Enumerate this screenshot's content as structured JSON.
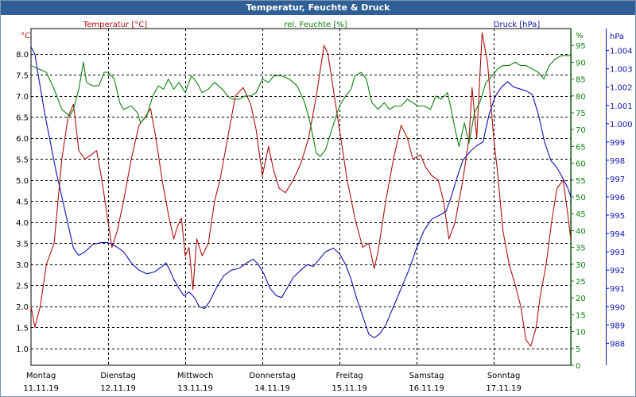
{
  "window": {
    "title": "Temperatur, Feuchte & Druck"
  },
  "colors": {
    "temperature": "#b01010",
    "humidity": "#108010",
    "pressure": "#1010b0",
    "grid": "#000000"
  },
  "chart_data": {
    "type": "line",
    "title": "Temperatur, Feuchte & Druck",
    "grid": true,
    "x_ticks": [
      {
        "day": "Montag",
        "date": "11.11.19"
      },
      {
        "day": "Dienstag",
        "date": "12.11.19"
      },
      {
        "day": "Mittwoch",
        "date": "13.11.19"
      },
      {
        "day": "Donnerstag",
        "date": "14.11.19"
      },
      {
        "day": "Freitag",
        "date": "15.11.19"
      },
      {
        "day": "Samstag",
        "date": "16.11.19"
      },
      {
        "day": "Sonntag",
        "date": "17.11.19"
      }
    ],
    "x_range_days": [
      0,
      7
    ],
    "axes": {
      "temperature": {
        "label": "Temperatur [°C]",
        "unit": "°C",
        "range": [
          0.6,
          8.6
        ],
        "ticks": [
          "1.0",
          "1.5",
          "2.0",
          "2.5",
          "3.0",
          "3.5",
          "4.0",
          "4.5",
          "5.0",
          "5.5",
          "6.0",
          "6.5",
          "7.0",
          "7.5",
          "8.0"
        ]
      },
      "humidity": {
        "label": "rel. Feuchte [%]",
        "unit": "%",
        "range": [
          0,
          100
        ],
        "ticks": [
          "0",
          "5",
          "10",
          "15",
          "20",
          "25",
          "30",
          "35",
          "40",
          "45",
          "50",
          "55",
          "60",
          "65",
          "70",
          "75",
          "80",
          "85",
          "90",
          "95"
        ]
      },
      "pressure": {
        "label": "Druck [hPa]",
        "unit": "hPa",
        "range": [
          986.8,
          1005.2
        ],
        "ticks": [
          "988",
          "989",
          "990",
          "991",
          "992",
          "993",
          "994",
          "995",
          "996",
          "997",
          "998",
          "999",
          "1.000",
          "1.001",
          "1.002",
          "1.003",
          "1.004"
        ]
      }
    },
    "series": [
      {
        "name": "Temperatur [°C]",
        "axis": "temperature",
        "points": [
          [
            0.0,
            2.0
          ],
          [
            0.05,
            1.5
          ],
          [
            0.12,
            2.0
          ],
          [
            0.2,
            3.0
          ],
          [
            0.3,
            3.5
          ],
          [
            0.4,
            5.5
          ],
          [
            0.48,
            6.5
          ],
          [
            0.55,
            6.8
          ],
          [
            0.62,
            5.7
          ],
          [
            0.7,
            5.5
          ],
          [
            0.78,
            5.6
          ],
          [
            0.85,
            5.7
          ],
          [
            0.92,
            5.0
          ],
          [
            1.0,
            4.0
          ],
          [
            1.05,
            3.4
          ],
          [
            1.12,
            3.8
          ],
          [
            1.2,
            4.5
          ],
          [
            1.3,
            5.5
          ],
          [
            1.4,
            6.3
          ],
          [
            1.48,
            6.5
          ],
          [
            1.55,
            6.7
          ],
          [
            1.62,
            6.0
          ],
          [
            1.7,
            5.0
          ],
          [
            1.78,
            4.2
          ],
          [
            1.85,
            3.6
          ],
          [
            1.9,
            3.9
          ],
          [
            1.95,
            4.1
          ],
          [
            2.0,
            3.2
          ],
          [
            2.05,
            3.4
          ],
          [
            2.1,
            2.4
          ],
          [
            2.15,
            3.6
          ],
          [
            2.22,
            3.2
          ],
          [
            2.3,
            3.5
          ],
          [
            2.38,
            4.5
          ],
          [
            2.45,
            5.0
          ],
          [
            2.55,
            6.0
          ],
          [
            2.65,
            7.0
          ],
          [
            2.75,
            7.2
          ],
          [
            2.85,
            6.8
          ],
          [
            2.92,
            6.2
          ],
          [
            3.0,
            5.1
          ],
          [
            3.08,
            5.8
          ],
          [
            3.15,
            5.2
          ],
          [
            3.22,
            4.8
          ],
          [
            3.3,
            4.7
          ],
          [
            3.4,
            5.0
          ],
          [
            3.5,
            5.4
          ],
          [
            3.6,
            6.0
          ],
          [
            3.7,
            7.0
          ],
          [
            3.8,
            8.2
          ],
          [
            3.85,
            8.0
          ],
          [
            3.9,
            7.4
          ],
          [
            4.0,
            6.2
          ],
          [
            4.1,
            5.0
          ],
          [
            4.2,
            4.1
          ],
          [
            4.3,
            3.4
          ],
          [
            4.38,
            3.5
          ],
          [
            4.45,
            2.9
          ],
          [
            4.5,
            3.3
          ],
          [
            4.6,
            4.5
          ],
          [
            4.7,
            5.5
          ],
          [
            4.8,
            6.3
          ],
          [
            4.88,
            6.0
          ],
          [
            4.95,
            5.5
          ],
          [
            5.05,
            5.6
          ],
          [
            5.12,
            5.3
          ],
          [
            5.2,
            5.1
          ],
          [
            5.28,
            5.0
          ],
          [
            5.35,
            4.5
          ],
          [
            5.42,
            3.6
          ],
          [
            5.5,
            4.0
          ],
          [
            5.6,
            5.0
          ],
          [
            5.68,
            6.0
          ],
          [
            5.72,
            7.2
          ],
          [
            5.78,
            6.0
          ],
          [
            5.85,
            8.5
          ],
          [
            5.92,
            7.8
          ],
          [
            6.0,
            6.0
          ],
          [
            6.05,
            5.2
          ],
          [
            6.12,
            3.8
          ],
          [
            6.2,
            3.0
          ],
          [
            6.28,
            2.5
          ],
          [
            6.35,
            2.0
          ],
          [
            6.42,
            1.2
          ],
          [
            6.48,
            1.05
          ],
          [
            6.55,
            1.5
          ],
          [
            6.6,
            2.2
          ],
          [
            6.68,
            3.0
          ],
          [
            6.75,
            4.0
          ],
          [
            6.82,
            4.8
          ],
          [
            6.9,
            5.0
          ],
          [
            6.96,
            4.2
          ],
          [
            7.0,
            3.6
          ]
        ]
      },
      {
        "name": "rel. Feuchte [%]",
        "axis": "humidity",
        "points": [
          [
            0.0,
            89
          ],
          [
            0.1,
            88
          ],
          [
            0.2,
            87
          ],
          [
            0.3,
            82
          ],
          [
            0.4,
            76
          ],
          [
            0.5,
            74
          ],
          [
            0.55,
            76
          ],
          [
            0.62,
            82
          ],
          [
            0.68,
            90
          ],
          [
            0.72,
            84
          ],
          [
            0.8,
            83
          ],
          [
            0.88,
            83
          ],
          [
            0.95,
            87
          ],
          [
            1.0,
            87
          ],
          [
            1.08,
            85
          ],
          [
            1.15,
            78
          ],
          [
            1.2,
            76
          ],
          [
            1.3,
            77
          ],
          [
            1.38,
            75
          ],
          [
            1.42,
            72
          ],
          [
            1.5,
            74
          ],
          [
            1.58,
            80
          ],
          [
            1.65,
            83
          ],
          [
            1.72,
            82
          ],
          [
            1.78,
            85
          ],
          [
            1.85,
            82
          ],
          [
            1.92,
            84
          ],
          [
            2.0,
            81
          ],
          [
            2.08,
            86
          ],
          [
            2.15,
            84
          ],
          [
            2.22,
            81
          ],
          [
            2.3,
            82
          ],
          [
            2.38,
            84
          ],
          [
            2.48,
            82
          ],
          [
            2.55,
            80
          ],
          [
            2.62,
            79
          ],
          [
            2.7,
            79
          ],
          [
            2.78,
            80
          ],
          [
            2.85,
            80
          ],
          [
            2.92,
            81
          ],
          [
            3.0,
            85
          ],
          [
            3.08,
            84
          ],
          [
            3.15,
            86
          ],
          [
            3.25,
            86
          ],
          [
            3.35,
            85
          ],
          [
            3.45,
            83
          ],
          [
            3.55,
            78
          ],
          [
            3.62,
            72
          ],
          [
            3.7,
            63
          ],
          [
            3.75,
            62
          ],
          [
            3.82,
            64
          ],
          [
            3.9,
            70
          ],
          [
            4.0,
            77
          ],
          [
            4.08,
            80
          ],
          [
            4.15,
            82
          ],
          [
            4.2,
            86
          ],
          [
            4.28,
            87
          ],
          [
            4.35,
            85
          ],
          [
            4.42,
            78
          ],
          [
            4.5,
            76
          ],
          [
            4.58,
            78
          ],
          [
            4.65,
            76
          ],
          [
            4.72,
            77
          ],
          [
            4.8,
            77
          ],
          [
            4.88,
            79
          ],
          [
            4.95,
            78
          ],
          [
            5.02,
            77
          ],
          [
            5.1,
            77
          ],
          [
            5.18,
            76
          ],
          [
            5.25,
            80
          ],
          [
            5.32,
            79
          ],
          [
            5.4,
            81
          ],
          [
            5.45,
            76
          ],
          [
            5.5,
            70
          ],
          [
            5.55,
            65
          ],
          [
            5.62,
            72
          ],
          [
            5.68,
            66
          ],
          [
            5.75,
            75
          ],
          [
            5.82,
            78
          ],
          [
            5.9,
            84
          ],
          [
            5.98,
            86
          ],
          [
            6.05,
            88
          ],
          [
            6.12,
            89
          ],
          [
            6.2,
            89
          ],
          [
            6.28,
            90
          ],
          [
            6.35,
            89
          ],
          [
            6.42,
            89
          ],
          [
            6.5,
            88
          ],
          [
            6.58,
            87
          ],
          [
            6.65,
            85
          ],
          [
            6.72,
            89
          ],
          [
            6.8,
            91
          ],
          [
            6.88,
            92
          ],
          [
            6.95,
            92
          ],
          [
            7.0,
            92
          ]
        ]
      },
      {
        "name": "Druck [hPa]",
        "axis": "pressure",
        "points": [
          [
            0.0,
            1004.2
          ],
          [
            0.05,
            1003.8
          ],
          [
            0.1,
            1002.5
          ],
          [
            0.18,
            1000.5
          ],
          [
            0.25,
            999.0
          ],
          [
            0.32,
            997.5
          ],
          [
            0.4,
            996.0
          ],
          [
            0.48,
            994.5
          ],
          [
            0.55,
            993.2
          ],
          [
            0.62,
            992.8
          ],
          [
            0.7,
            993.0
          ],
          [
            0.8,
            993.4
          ],
          [
            0.9,
            993.5
          ],
          [
            1.0,
            993.5
          ],
          [
            1.1,
            993.3
          ],
          [
            1.2,
            993.0
          ],
          [
            1.3,
            992.4
          ],
          [
            1.4,
            992.0
          ],
          [
            1.5,
            991.8
          ],
          [
            1.6,
            991.9
          ],
          [
            1.7,
            992.2
          ],
          [
            1.75,
            992.4
          ],
          [
            1.8,
            992.0
          ],
          [
            1.85,
            991.5
          ],
          [
            1.92,
            991.0
          ],
          [
            1.98,
            990.6
          ],
          [
            2.05,
            990.8
          ],
          [
            2.12,
            990.5
          ],
          [
            2.18,
            990.0
          ],
          [
            2.25,
            989.9
          ],
          [
            2.32,
            990.3
          ],
          [
            2.4,
            991.0
          ],
          [
            2.5,
            991.7
          ],
          [
            2.6,
            992.0
          ],
          [
            2.7,
            992.1
          ],
          [
            2.8,
            992.4
          ],
          [
            2.88,
            992.6
          ],
          [
            2.95,
            992.3
          ],
          [
            3.02,
            991.8
          ],
          [
            3.1,
            991.0
          ],
          [
            3.18,
            990.6
          ],
          [
            3.25,
            990.5
          ],
          [
            3.32,
            991.0
          ],
          [
            3.4,
            991.6
          ],
          [
            3.5,
            992.0
          ],
          [
            3.58,
            992.3
          ],
          [
            3.66,
            992.2
          ],
          [
            3.74,
            992.6
          ],
          [
            3.82,
            993.0
          ],
          [
            3.92,
            993.2
          ],
          [
            4.0,
            992.9
          ],
          [
            4.08,
            992.3
          ],
          [
            4.15,
            991.5
          ],
          [
            4.22,
            990.5
          ],
          [
            4.3,
            989.5
          ],
          [
            4.38,
            988.5
          ],
          [
            4.45,
            988.3
          ],
          [
            4.52,
            988.5
          ],
          [
            4.6,
            989.0
          ],
          [
            4.7,
            990.0
          ],
          [
            4.8,
            991.0
          ],
          [
            4.9,
            992.0
          ],
          [
            5.0,
            993.2
          ],
          [
            5.1,
            994.2
          ],
          [
            5.2,
            994.8
          ],
          [
            5.3,
            995.0
          ],
          [
            5.38,
            995.2
          ],
          [
            5.45,
            996.0
          ],
          [
            5.52,
            997.0
          ],
          [
            5.6,
            998.0
          ],
          [
            5.7,
            998.5
          ],
          [
            5.78,
            998.8
          ],
          [
            5.86,
            999.0
          ],
          [
            5.94,
            1000.5
          ],
          [
            6.02,
            1001.5
          ],
          [
            6.1,
            1002.0
          ],
          [
            6.18,
            1002.3
          ],
          [
            6.26,
            1002.0
          ],
          [
            6.34,
            1001.9
          ],
          [
            6.42,
            1001.8
          ],
          [
            6.5,
            1001.6
          ],
          [
            6.58,
            1000.5
          ],
          [
            6.66,
            999.0
          ],
          [
            6.74,
            998.0
          ],
          [
            6.82,
            997.6
          ],
          [
            6.9,
            997.0
          ],
          [
            6.96,
            996.5
          ],
          [
            7.0,
            996.0
          ]
        ]
      }
    ]
  }
}
